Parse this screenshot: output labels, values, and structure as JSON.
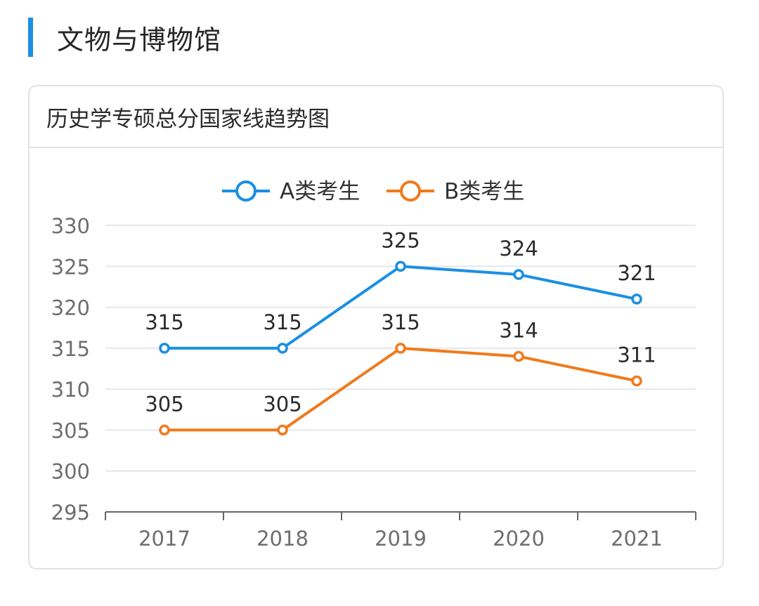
{
  "section": {
    "title": "文物与博物馆",
    "accent_color": "#1a8fe3"
  },
  "card": {
    "title": "历史学专硕总分国家线趋势图"
  },
  "chart_data": {
    "type": "line",
    "title": "历史学专硕总分国家线趋势图",
    "categories": [
      "2017",
      "2018",
      "2019",
      "2020",
      "2021"
    ],
    "series": [
      {
        "name": "A类考生",
        "values": [
          315,
          315,
          325,
          324,
          321
        ],
        "color": "#1a8fe3"
      },
      {
        "name": "B类考生",
        "values": [
          305,
          305,
          315,
          314,
          311
        ],
        "color": "#f07a1c"
      }
    ],
    "ylim": [
      295,
      330
    ],
    "yticks": [
      295,
      300,
      305,
      310,
      315,
      320,
      325,
      330
    ],
    "grid": true,
    "legend_position": "top-center",
    "data_labels": true,
    "xlabel": "",
    "ylabel": ""
  }
}
